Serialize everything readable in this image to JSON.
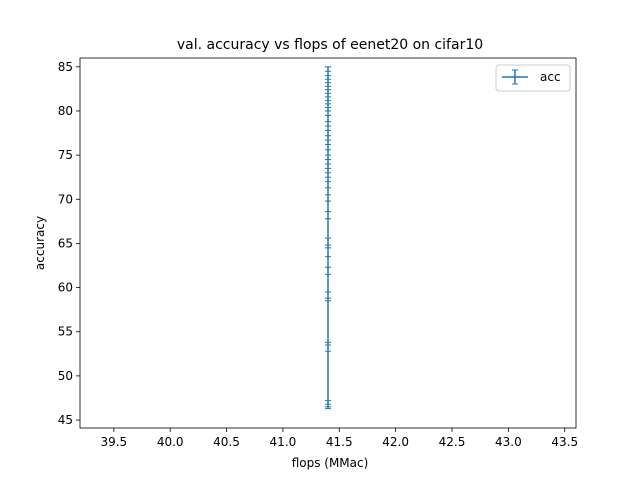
{
  "chart_data": {
    "type": "line",
    "title": "val. accuracy vs flops of eenet20 on cifar10",
    "xlabel": "flops (MMac)",
    "ylabel": "accuracy",
    "xlim": [
      39.2,
      43.6
    ],
    "ylim": [
      44.1,
      86.0
    ],
    "x_ticks": [
      39.5,
      40.0,
      40.5,
      41.0,
      41.5,
      42.0,
      42.5,
      43.0,
      43.5
    ],
    "x_tick_labels": [
      "39.5",
      "40.0",
      "40.5",
      "41.0",
      "41.5",
      "42.0",
      "42.5",
      "43.0",
      "43.5"
    ],
    "y_ticks": [
      45,
      50,
      55,
      60,
      65,
      70,
      75,
      80,
      85
    ],
    "y_tick_labels": [
      "45",
      "50",
      "55",
      "60",
      "65",
      "70",
      "75",
      "80",
      "85"
    ],
    "grid": false,
    "legend_position": "upper right",
    "series": [
      {
        "name": "acc",
        "color": "#1f77b4",
        "marker": "errorbar",
        "x": [
          41.4,
          41.4,
          41.4,
          41.4,
          41.4,
          41.4,
          41.4,
          41.4,
          41.4,
          41.4,
          41.4,
          41.4,
          41.4,
          41.4,
          41.4,
          41.4,
          41.4,
          41.4,
          41.4,
          41.4,
          41.4,
          41.4,
          41.4,
          41.4,
          41.4,
          41.4,
          41.4,
          41.4,
          41.4,
          41.4,
          41.4,
          41.4,
          41.4,
          41.4,
          41.4,
          41.4,
          41.4,
          41.4,
          41.4,
          41.4,
          41.4,
          41.4,
          41.4,
          41.4,
          41.4,
          41.4,
          41.4,
          41.4,
          41.4
        ],
        "y": [
          85.0,
          84.5,
          84.0,
          83.6,
          83.2,
          82.8,
          82.4,
          82.0,
          81.6,
          81.2,
          80.8,
          80.4,
          80.0,
          79.5,
          78.8,
          78.3,
          77.8,
          77.2,
          76.7,
          76.2,
          75.6,
          75.0,
          74.5,
          74.0,
          73.5,
          73.0,
          72.5,
          72.0,
          71.3,
          70.5,
          69.8,
          68.6,
          67.8,
          65.6,
          64.8,
          64.5,
          63.5,
          62.3,
          61.5,
          59.5,
          58.8,
          58.5,
          53.8,
          53.5,
          52.8,
          47.2,
          46.8,
          46.5,
          46.3
        ]
      }
    ]
  }
}
